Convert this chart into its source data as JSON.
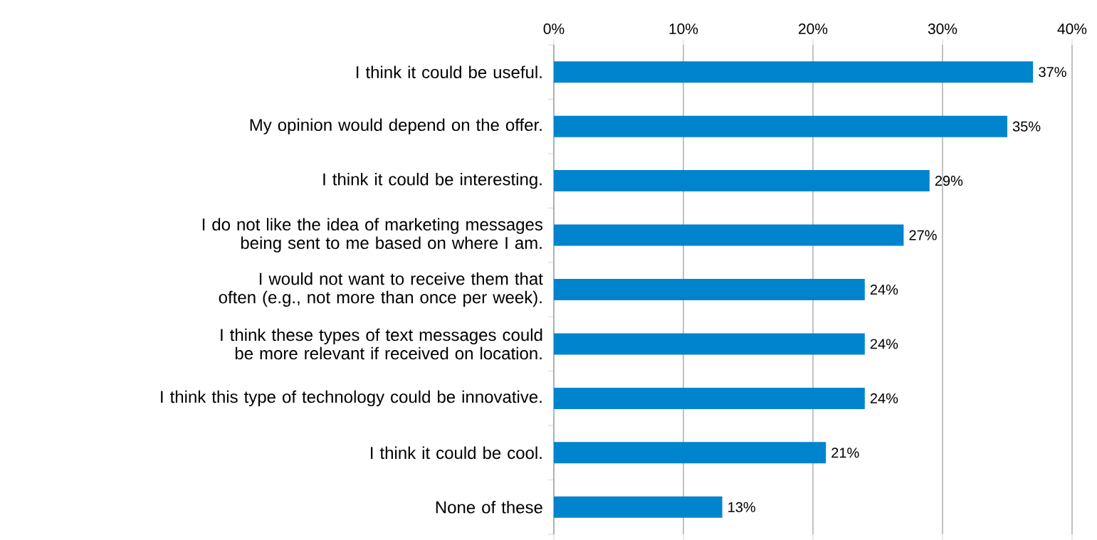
{
  "chart_data": {
    "type": "bar",
    "orientation": "horizontal",
    "categories": [
      "I think it could be useful.",
      "My opinion would depend on the offer.",
      "I think it could be interesting.",
      "I do not like the idea of marketing messages being sent to me based on where I am.",
      "I would not want to receive them that often (e.g., not more than once per week).",
      "I think these types of text messages could be more relevant if received on location.",
      "I think this type of technology could be innovative.",
      "I think it could be cool.",
      "None of these"
    ],
    "values": [
      37,
      35,
      29,
      27,
      24,
      24,
      24,
      21,
      13
    ],
    "value_labels": [
      "37%",
      "35%",
      "29%",
      "27%",
      "24%",
      "24%",
      "24%",
      "21%",
      "13%"
    ],
    "color": "#0084ce",
    "xlim": [
      0,
      40
    ],
    "xticks": [
      {
        "value": 0,
        "label": "0%"
      },
      {
        "value": 10,
        "label": "10%"
      },
      {
        "value": 20,
        "label": "20%"
      },
      {
        "value": 30,
        "label": "30%"
      },
      {
        "value": 40,
        "label": "40%"
      }
    ],
    "grid": "x"
  }
}
